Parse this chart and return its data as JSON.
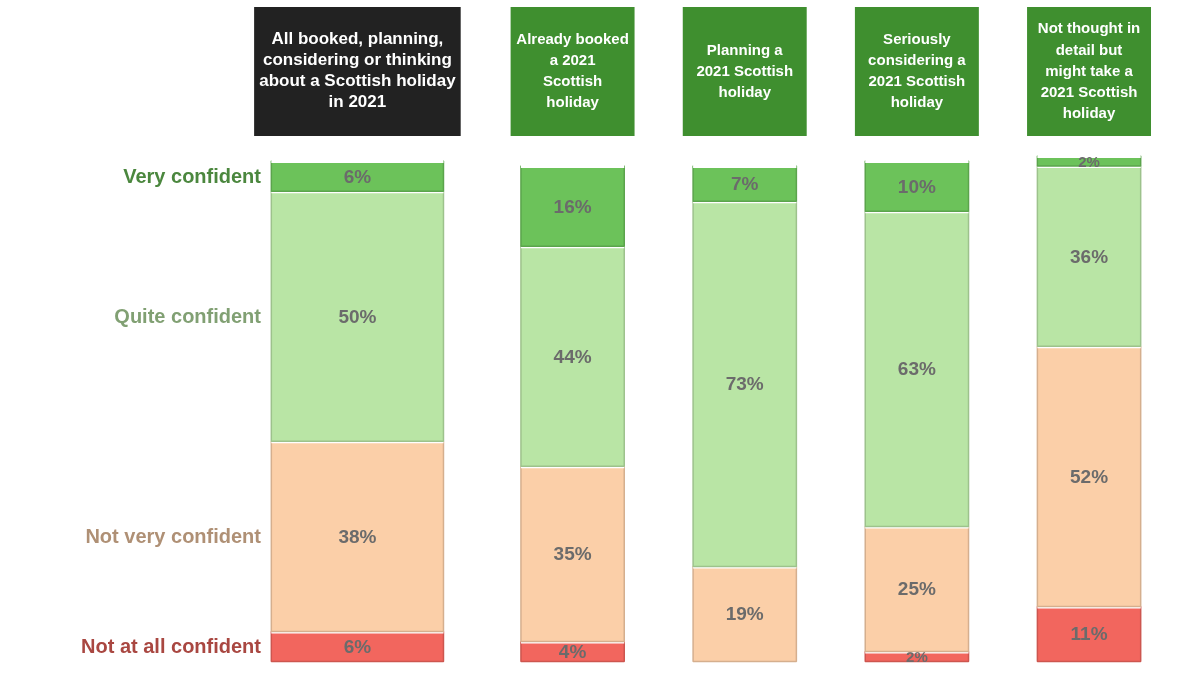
{
  "chart_data": {
    "type": "bar",
    "stacked": true,
    "categories": [
      "All booked, planning, considering or thinking about a Scottish holiday in 2021",
      "Already booked a 2021 Scottish holiday",
      "Planning a 2021 Scottish holiday",
      "Seriously considering a 2021 Scottish holiday",
      "Not thought in detail but might take a 2021 Scottish holiday"
    ],
    "series": [
      {
        "name": "Not at all confident",
        "color": "#f2665e",
        "values": [
          6,
          4,
          null,
          2,
          11
        ],
        "value_labels": [
          "6%",
          "4%",
          null,
          "2%",
          "11%"
        ]
      },
      {
        "name": "Not very confident",
        "color": "#fbcfa8",
        "values": [
          38,
          35,
          19,
          25,
          52
        ],
        "value_labels": [
          "38%",
          "35%",
          "19%",
          "25%",
          "52%"
        ]
      },
      {
        "name": "Quite confident",
        "color": "#b9e5a5",
        "values": [
          50,
          44,
          73,
          63,
          36
        ],
        "value_labels": [
          "50%",
          "44%",
          "73%",
          "63%",
          "36%"
        ]
      },
      {
        "name": "Very confident",
        "color": "#6cc25a",
        "values": [
          6,
          16,
          7,
          10,
          2
        ],
        "value_labels": [
          "6%",
          "16%",
          "7%",
          "10%",
          "2%"
        ]
      }
    ]
  }
}
